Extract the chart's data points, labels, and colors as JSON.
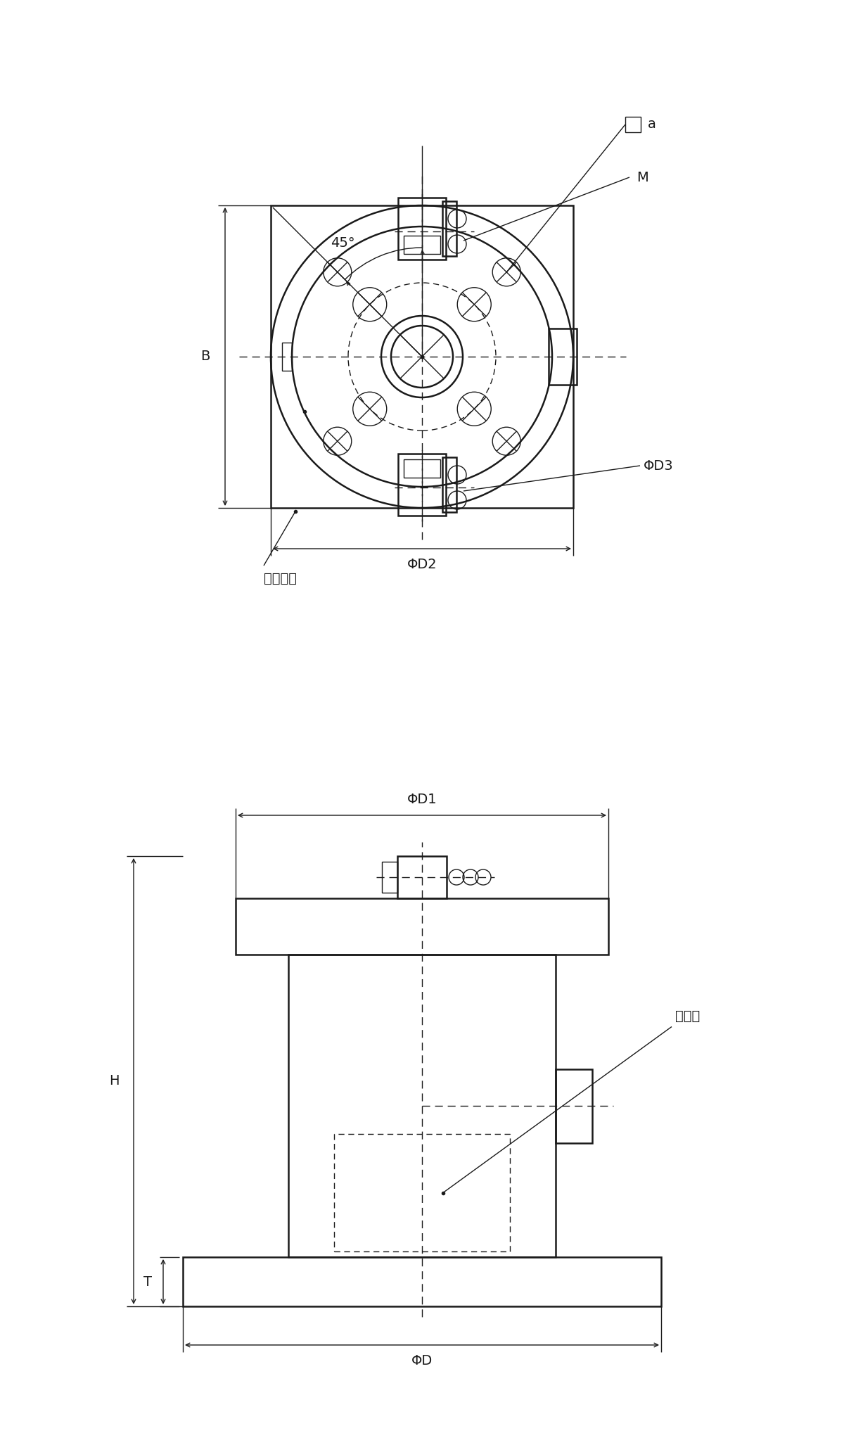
{
  "bg_color": "#ffffff",
  "lc": "#1a1a1a",
  "lw_main": 1.8,
  "lw_thin": 1.0,
  "lw_dim": 1.0,
  "fs": 14,
  "labels": {
    "B": "B",
    "phiD2": "ΦD2",
    "phiD3": "ΦD3",
    "phiD1": "ΦD1",
    "phiD": "ΦD",
    "H": "H",
    "T": "T",
    "M": "M",
    "angle_45": "45°",
    "serial": "製造番号",
    "model": "型式名"
  }
}
